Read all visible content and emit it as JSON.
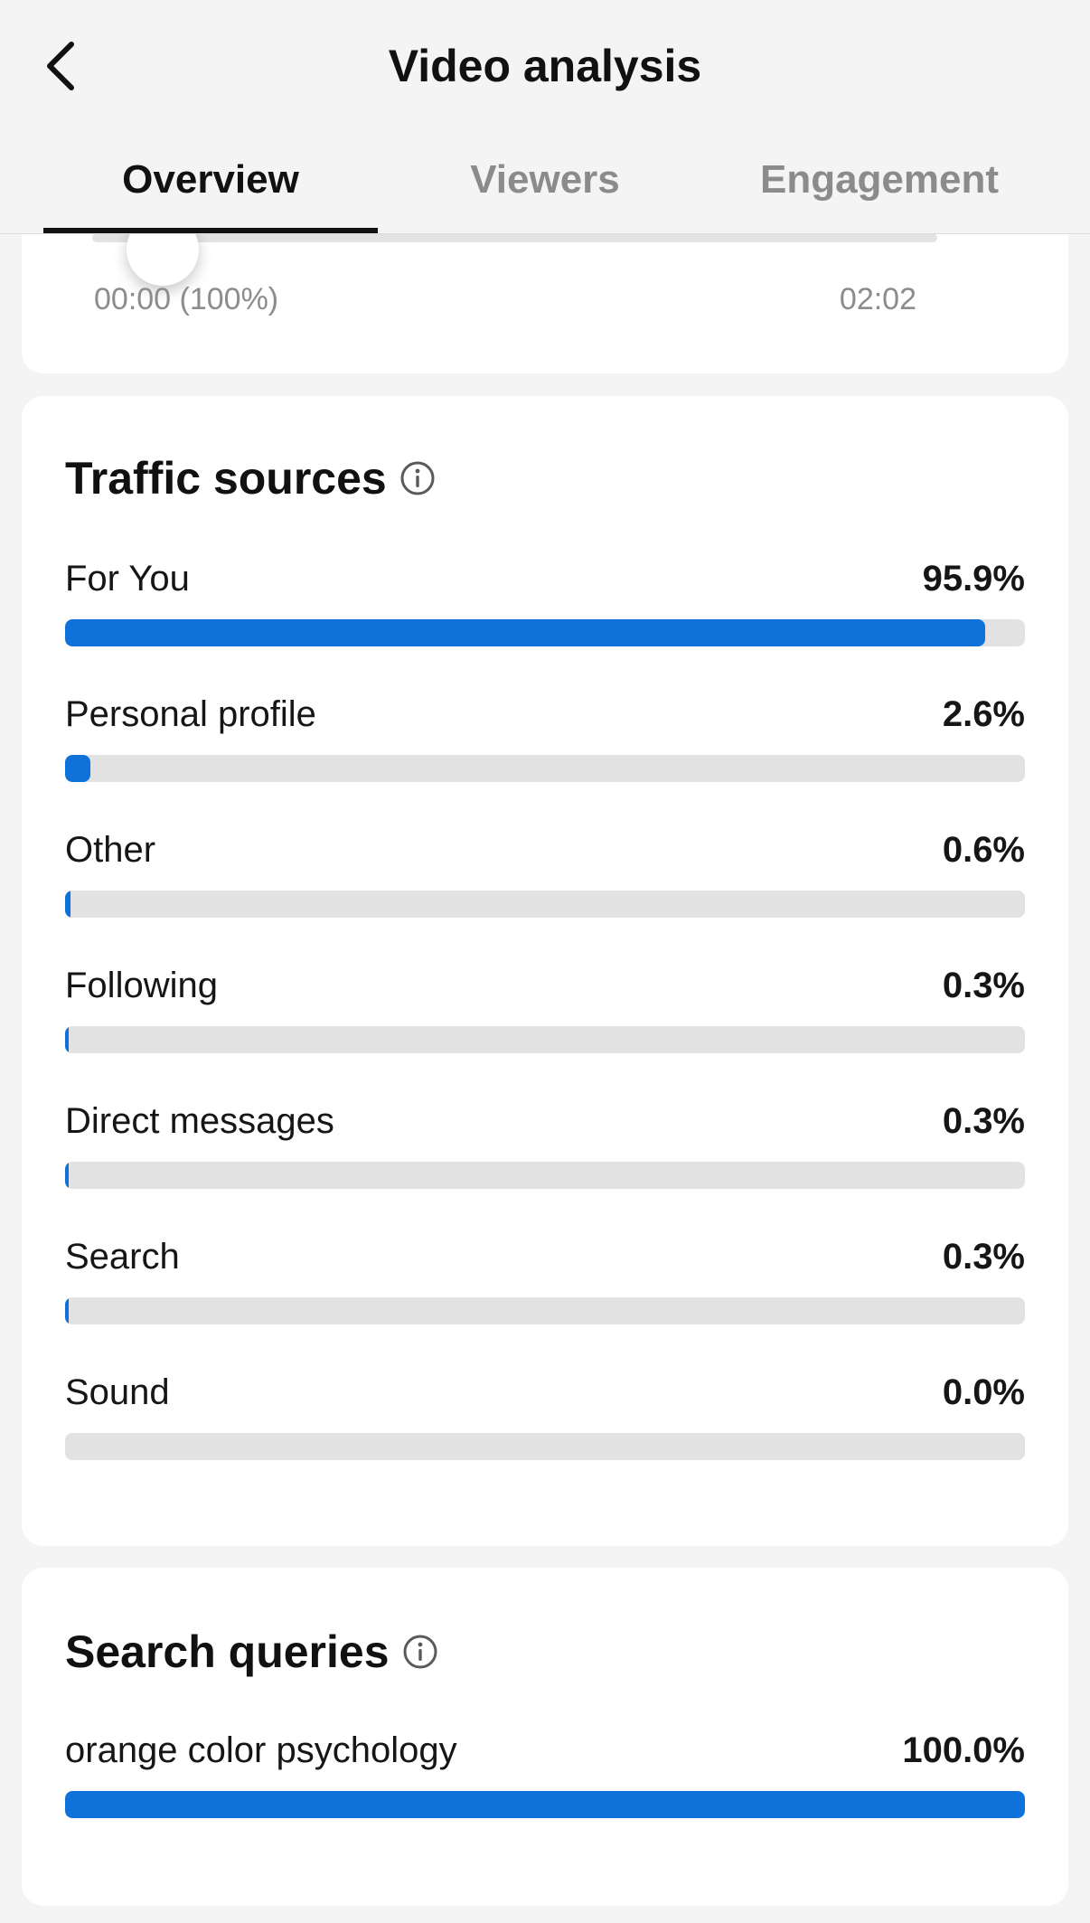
{
  "header": {
    "title": "Video analysis",
    "back_icon": "chevron-left-icon",
    "tabs": [
      {
        "label": "Overview",
        "active": true
      },
      {
        "label": "Viewers",
        "active": false
      },
      {
        "label": "Engagement",
        "active": false
      }
    ]
  },
  "scrubber": {
    "start_label": "00:00 (100%)",
    "end_label": "02:02"
  },
  "traffic_sources": {
    "title": "Traffic sources",
    "info_icon": "info-icon",
    "items": [
      {
        "label": "For You",
        "value": "95.9%",
        "percent": 95.9
      },
      {
        "label": "Personal profile",
        "value": "2.6%",
        "percent": 2.6
      },
      {
        "label": "Other",
        "value": "0.6%",
        "percent": 0.6
      },
      {
        "label": "Following",
        "value": "0.3%",
        "percent": 0.3
      },
      {
        "label": "Direct messages",
        "value": "0.3%",
        "percent": 0.3
      },
      {
        "label": "Search",
        "value": "0.3%",
        "percent": 0.3
      },
      {
        "label": "Sound",
        "value": "0.0%",
        "percent": 0.0
      }
    ]
  },
  "search_queries": {
    "title": "Search queries",
    "info_icon": "info-icon",
    "items": [
      {
        "label": "orange color psychology",
        "value": "100.0%",
        "percent": 100.0
      }
    ]
  },
  "colors": {
    "accent": "#0f72da",
    "track": "#e2e2e2",
    "background": "#f4f4f4"
  }
}
